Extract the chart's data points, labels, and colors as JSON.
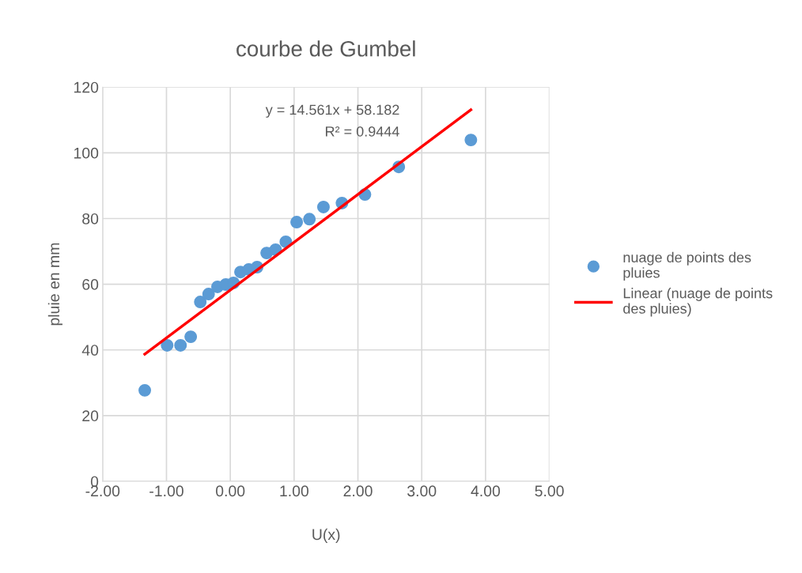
{
  "chart_data": {
    "type": "scatter",
    "title": "courbe de Gumbel",
    "xlabel": "U(x)",
    "ylabel": "pluie en mm",
    "xlim": [
      -2,
      5
    ],
    "xticks": [
      {
        "value": -2,
        "label": "-2.00"
      },
      {
        "value": -1,
        "label": "-1.00"
      },
      {
        "value": 0,
        "label": "0.00"
      },
      {
        "value": 1,
        "label": "1.00"
      },
      {
        "value": 2,
        "label": "2.00"
      },
      {
        "value": 3,
        "label": "3.00"
      },
      {
        "value": 4,
        "label": "4.00"
      },
      {
        "value": 5,
        "label": "5.00"
      }
    ],
    "ylim": [
      0,
      120
    ],
    "yticks": [
      0,
      20,
      40,
      60,
      80,
      100,
      120
    ],
    "grid": true,
    "legend": "right",
    "annotations": [
      "y = 14.561x + 58.182",
      "R² = 0.9444"
    ],
    "series": [
      {
        "name": "nuage de points des pluies",
        "marker": "circle",
        "color": "#5b9bd5",
        "x": [
          -1.34,
          -0.99,
          -0.78,
          -0.62,
          -0.47,
          -0.34,
          -0.2,
          -0.07,
          0.05,
          0.16,
          0.29,
          0.42,
          0.57,
          0.71,
          0.87,
          1.04,
          1.24,
          1.46,
          1.75,
          2.11,
          2.64,
          3.77
        ],
        "values": [
          27.7,
          41.4,
          41.4,
          44.0,
          54.6,
          57.0,
          59.2,
          59.9,
          60.4,
          63.7,
          64.5,
          65.2,
          69.5,
          70.5,
          72.9,
          78.9,
          79.8,
          83.5,
          84.7,
          87.3,
          95.7,
          103.9
        ]
      },
      {
        "name": "Linear (nuage de points des pluies)",
        "type": "line",
        "marker": "none",
        "color": "#ff0000",
        "x": [
          -1.34,
          3.77
        ],
        "values": [
          38.7,
          113.1
        ]
      }
    ]
  }
}
